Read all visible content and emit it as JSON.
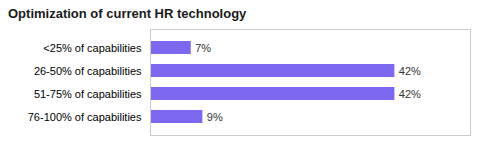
{
  "chart_data": {
    "type": "bar",
    "title": "Optimization of current HR technology",
    "orientation": "horizontal",
    "categories": [
      "<25% of capabilities",
      "26-50% of capabilities",
      "51-75% of capabilities",
      "76-100% of capabilities"
    ],
    "values": [
      7,
      42,
      42,
      9
    ],
    "value_labels": [
      "7%",
      "42%",
      "42%",
      "9%"
    ],
    "data_labels": true,
    "color": "#7B68EE",
    "xlim": [
      0,
      55
    ],
    "grid": false,
    "tick_labels": "y"
  }
}
